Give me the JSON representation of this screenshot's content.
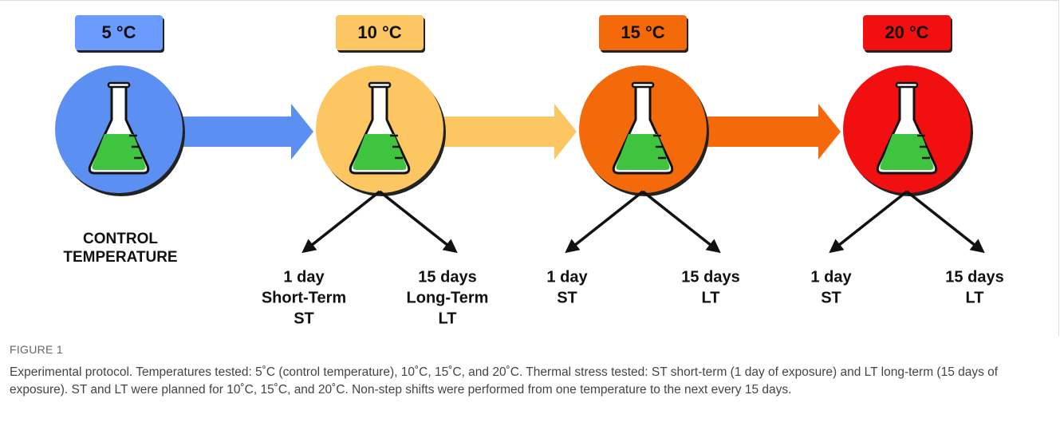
{
  "stages": [
    {
      "label": "5 °C",
      "color": "#5c8ff2",
      "box": "#6b9bff",
      "note": [
        "CONTROL",
        "TEMPERATURE"
      ]
    },
    {
      "label": "10 °C",
      "color": "#fcc763",
      "box": "#fcc763",
      "short": [
        "1 day",
        "Short-Term",
        "ST"
      ],
      "long": [
        "15 days",
        "Long-Term",
        "LT"
      ]
    },
    {
      "label": "15 °C",
      "color": "#f46a0b",
      "box": "#f46a0b",
      "short": [
        "1 day",
        "ST"
      ],
      "long": [
        "15 days",
        "LT"
      ]
    },
    {
      "label": "20 °C",
      "color": "#f20f10",
      "box": "#f20f10",
      "short": [
        "1 day",
        "ST"
      ],
      "long": [
        "15 days",
        "LT"
      ]
    }
  ],
  "caption": {
    "label": "FIGURE 1",
    "text": "Experimental protocol. Temperatures tested: 5˚C (control temperature), 10˚C, 15˚C, and 20˚C. Thermal stress tested: ST short-term (1 day of exposure) and LT long-term (15 days of exposure). ST and LT were planned for 10˚C, 15˚C, and 20˚C. Non-step shifts were performed from one temperature to the next every 15 days."
  }
}
